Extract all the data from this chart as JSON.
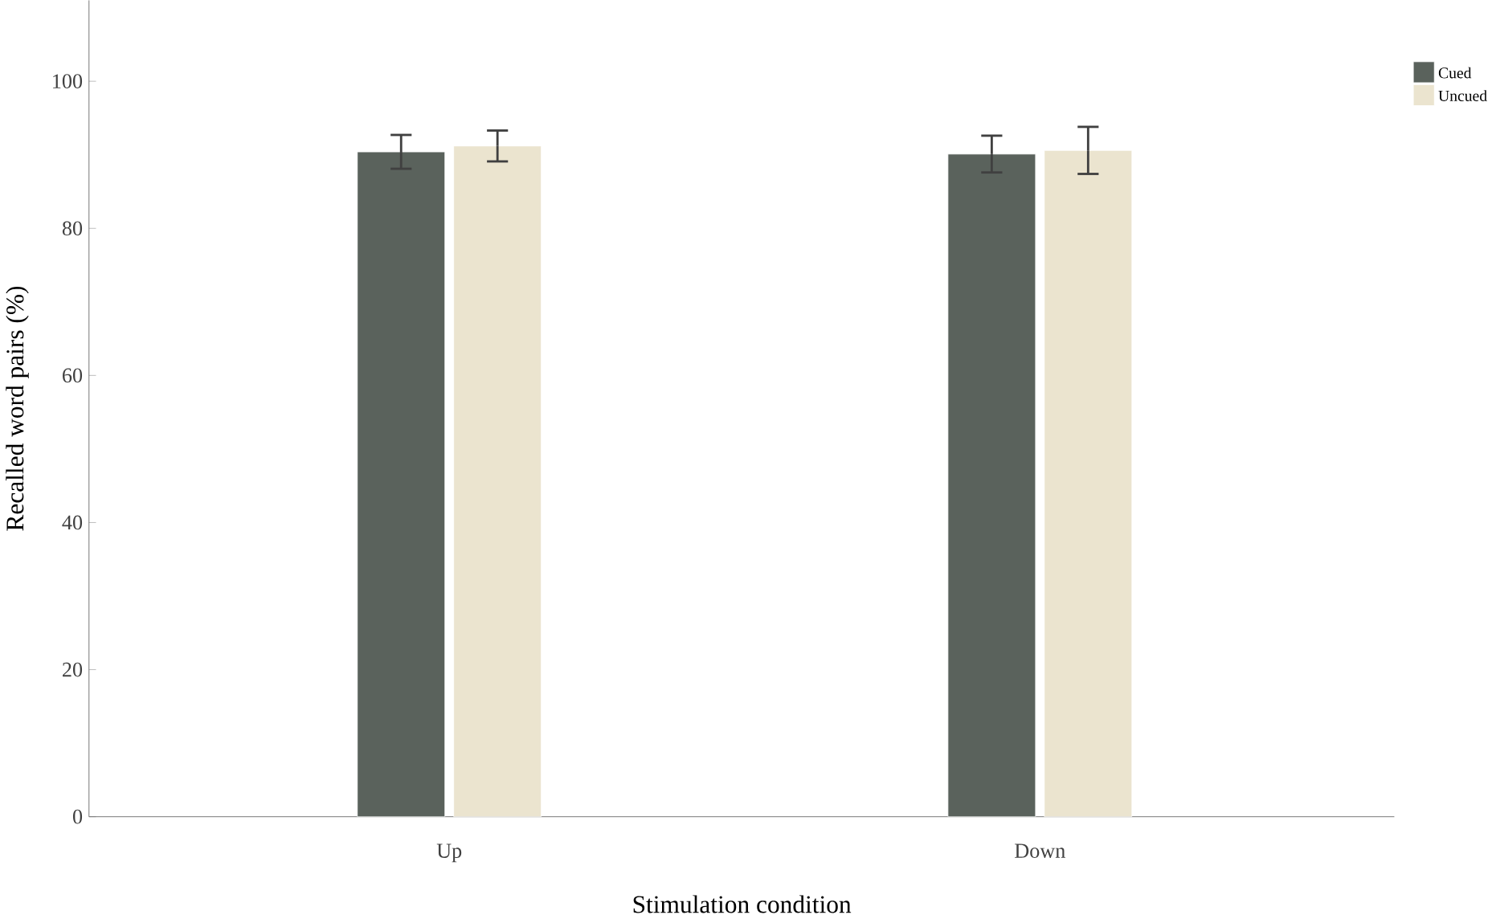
{
  "chart_data": {
    "type": "bar",
    "xlabel": "Stimulation condition",
    "ylabel": "Recalled word pairs (%)",
    "categories": [
      "Up",
      "Down"
    ],
    "series": [
      {
        "name": "Cued",
        "color": "#5a625c",
        "values": [
          90.4,
          90.1
        ],
        "errors": [
          2.3,
          2.5
        ]
      },
      {
        "name": "Uncued",
        "color": "#ebe4cf",
        "values": [
          91.2,
          90.6
        ],
        "errors": [
          2.1,
          3.2
        ]
      }
    ],
    "ylim": [
      0,
      111
    ],
    "yticks": [
      0,
      20,
      40,
      60,
      80,
      100
    ],
    "grid": false,
    "legend": "top right"
  }
}
